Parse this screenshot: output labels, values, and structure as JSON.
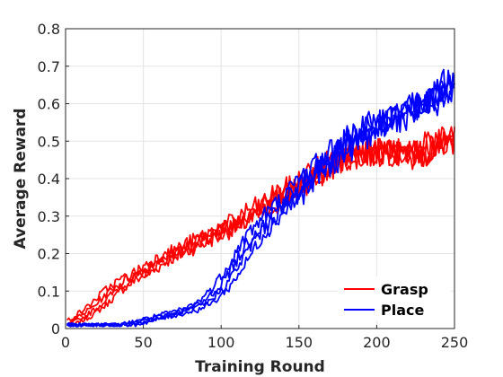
{
  "chart_data": {
    "type": "line",
    "title": "",
    "xlabel": "Training Round",
    "ylabel": "Average Reward",
    "xlim": [
      0,
      250
    ],
    "ylim": [
      0,
      0.8
    ],
    "xticks": [
      "0",
      "50",
      "100",
      "150",
      "200",
      "250"
    ],
    "yticks": [
      "0",
      "0.1",
      "0.2",
      "0.3",
      "0.4",
      "0.5",
      "0.6",
      "0.7",
      "0.8"
    ],
    "grid": true,
    "legend_position": "bottom-right",
    "series": [
      {
        "name": "Grasp",
        "color": "#ff0000",
        "runs": 4,
        "x": [
          0,
          10,
          20,
          30,
          40,
          50,
          60,
          70,
          80,
          90,
          100,
          110,
          120,
          130,
          140,
          150,
          160,
          170,
          180,
          190,
          200,
          210,
          220,
          230,
          240,
          250
        ],
        "values": [
          0.01,
          0.03,
          0.06,
          0.1,
          0.13,
          0.15,
          0.18,
          0.2,
          0.22,
          0.24,
          0.26,
          0.28,
          0.31,
          0.33,
          0.36,
          0.38,
          0.41,
          0.44,
          0.46,
          0.47,
          0.47,
          0.47,
          0.46,
          0.47,
          0.5,
          0.5
        ]
      },
      {
        "name": "Place",
        "color": "#0000ff",
        "runs": 4,
        "x": [
          0,
          10,
          20,
          30,
          40,
          50,
          60,
          70,
          80,
          90,
          100,
          110,
          120,
          130,
          140,
          150,
          160,
          170,
          180,
          190,
          200,
          210,
          220,
          230,
          240,
          250
        ],
        "values": [
          0.01,
          0.01,
          0.01,
          0.01,
          0.01,
          0.02,
          0.03,
          0.04,
          0.05,
          0.07,
          0.11,
          0.17,
          0.24,
          0.29,
          0.33,
          0.37,
          0.42,
          0.45,
          0.49,
          0.52,
          0.54,
          0.56,
          0.58,
          0.6,
          0.62,
          0.66
        ]
      }
    ]
  }
}
